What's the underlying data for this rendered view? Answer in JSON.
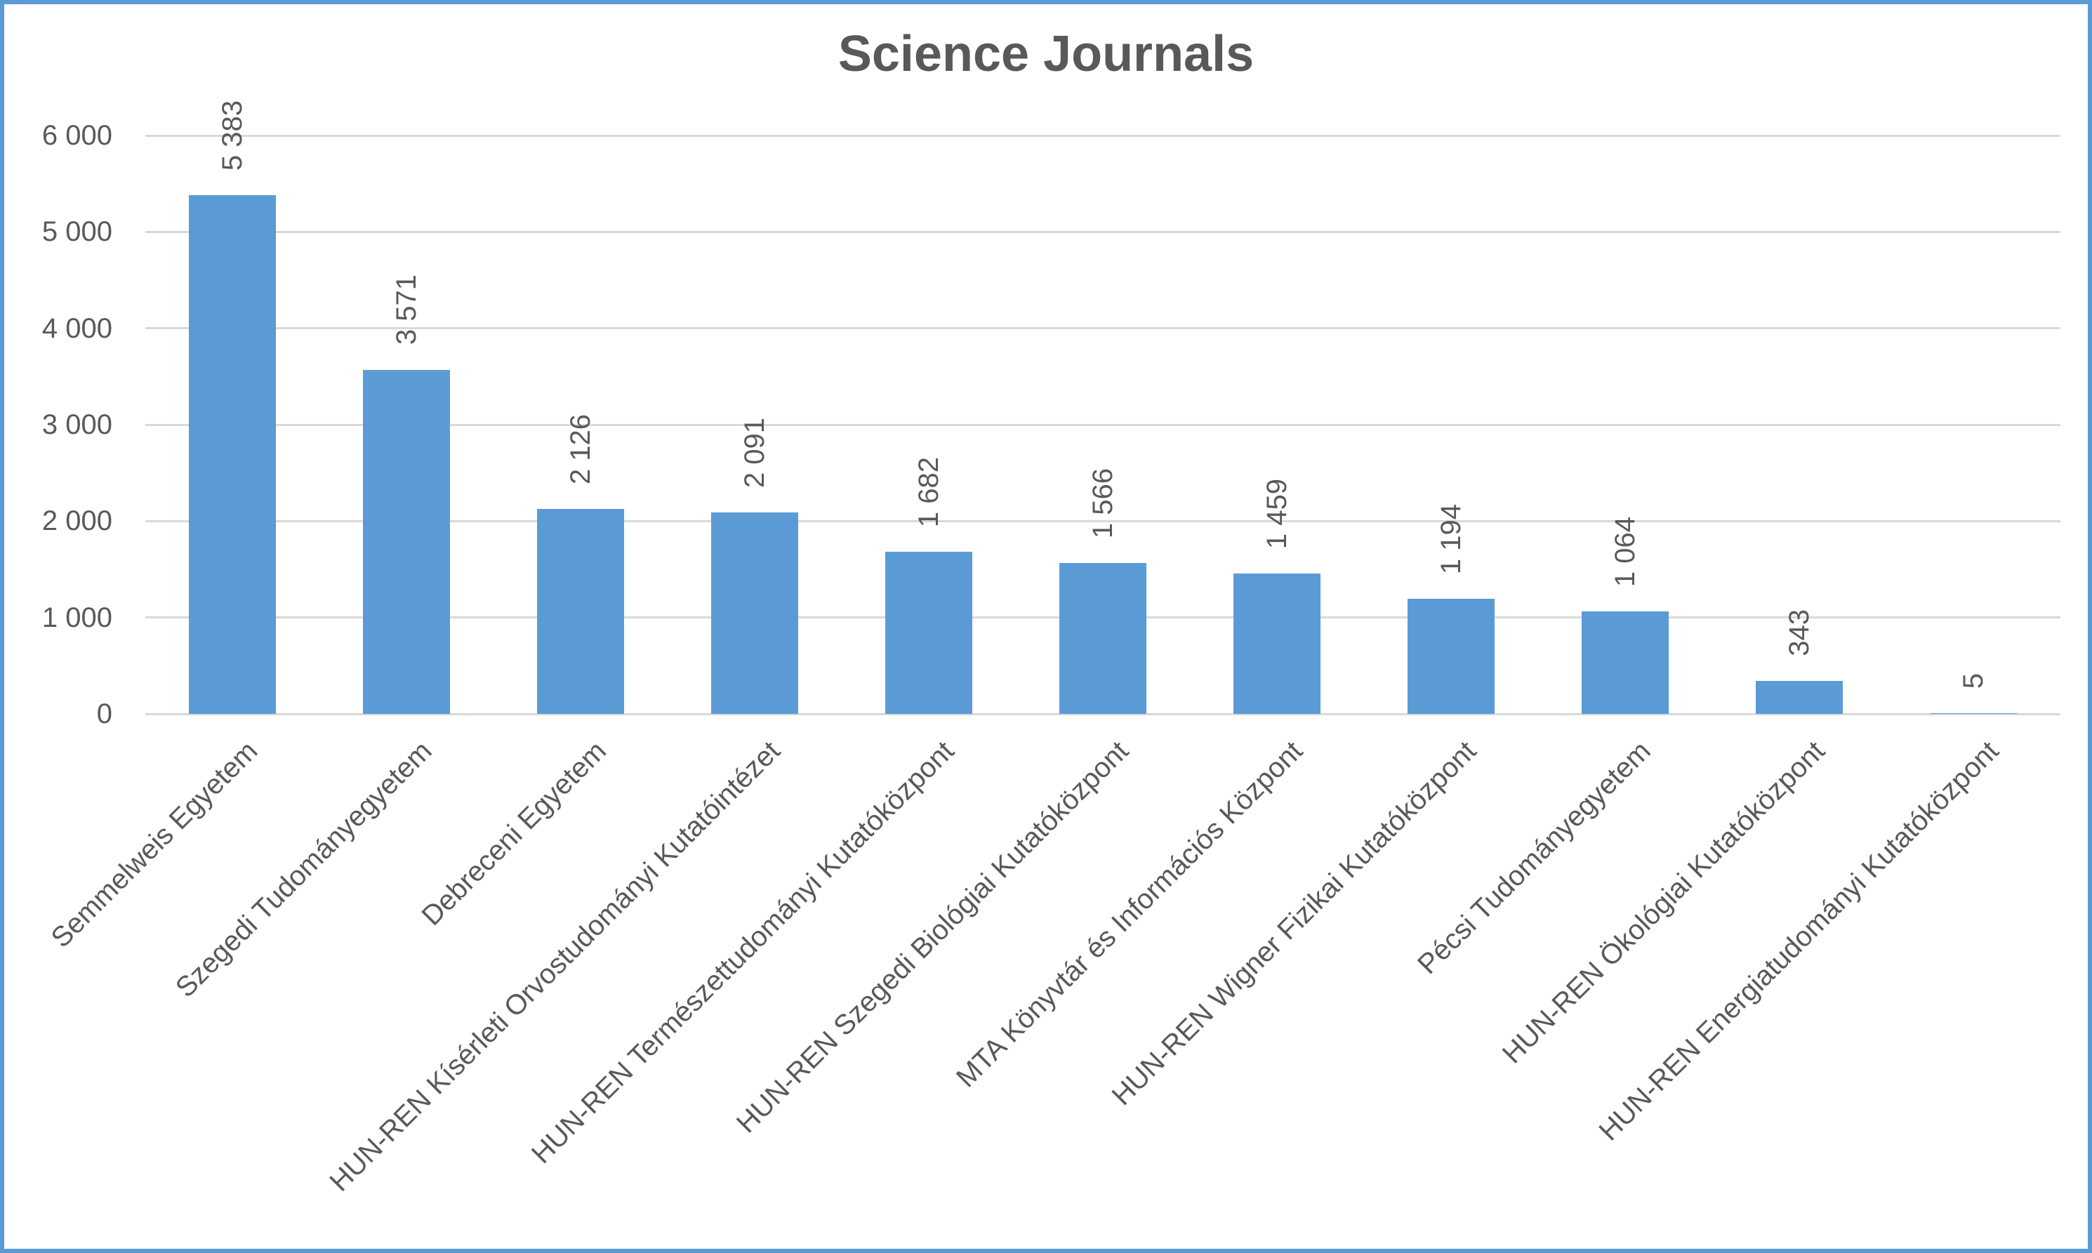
{
  "chart": {
    "title": "Science Journals",
    "bar_color": "#5B9BD5",
    "gridline_color": "#D9D9D9",
    "text_color": "#595959",
    "frame_border_color": "#5B9BD5",
    "background_color": "#FFFFFF"
  },
  "chart_data": {
    "type": "bar",
    "title": "Science Journals",
    "categories": [
      "Semmelweis Egyetem",
      "Szegedi Tudományegyetem",
      "Debreceni Egyetem",
      "HUN-REN Kísérleti Orvostudományi Kutatóintézet",
      "HUN-REN Természettudományi Kutatóközpont",
      "HUN-REN Szegedi Biológiai Kutatóközpont",
      "MTA Könyvtár és Információs Központ",
      "HUN-REN Wigner Fizikai Kutatóközpont",
      "Pécsi Tudományegyetem",
      "HUN-REN Ökológiai Kutatóközpont",
      "HUN-REN Energiatudományi Kutatóközpont"
    ],
    "values": [
      5383,
      3571,
      2126,
      2091,
      1682,
      1566,
      1459,
      1194,
      1064,
      343,
      5
    ],
    "value_labels": [
      "5 383",
      "3 571",
      "2 126",
      "2 091",
      "1 682",
      "1 566",
      "1 459",
      "1 194",
      "1 064",
      "343",
      "5"
    ],
    "xlabel": "",
    "ylabel": "",
    "ylim": [
      0,
      6000
    ],
    "ytick_interval": 1000,
    "ytick_labels": [
      "0",
      "1 000",
      "2 000",
      "3 000",
      "4 000",
      "5 000",
      "6 000"
    ],
    "grid": true,
    "legend": false,
    "data_label_rotation": -90,
    "category_label_rotation": -45,
    "bar_gap_ratio": 0.5
  }
}
